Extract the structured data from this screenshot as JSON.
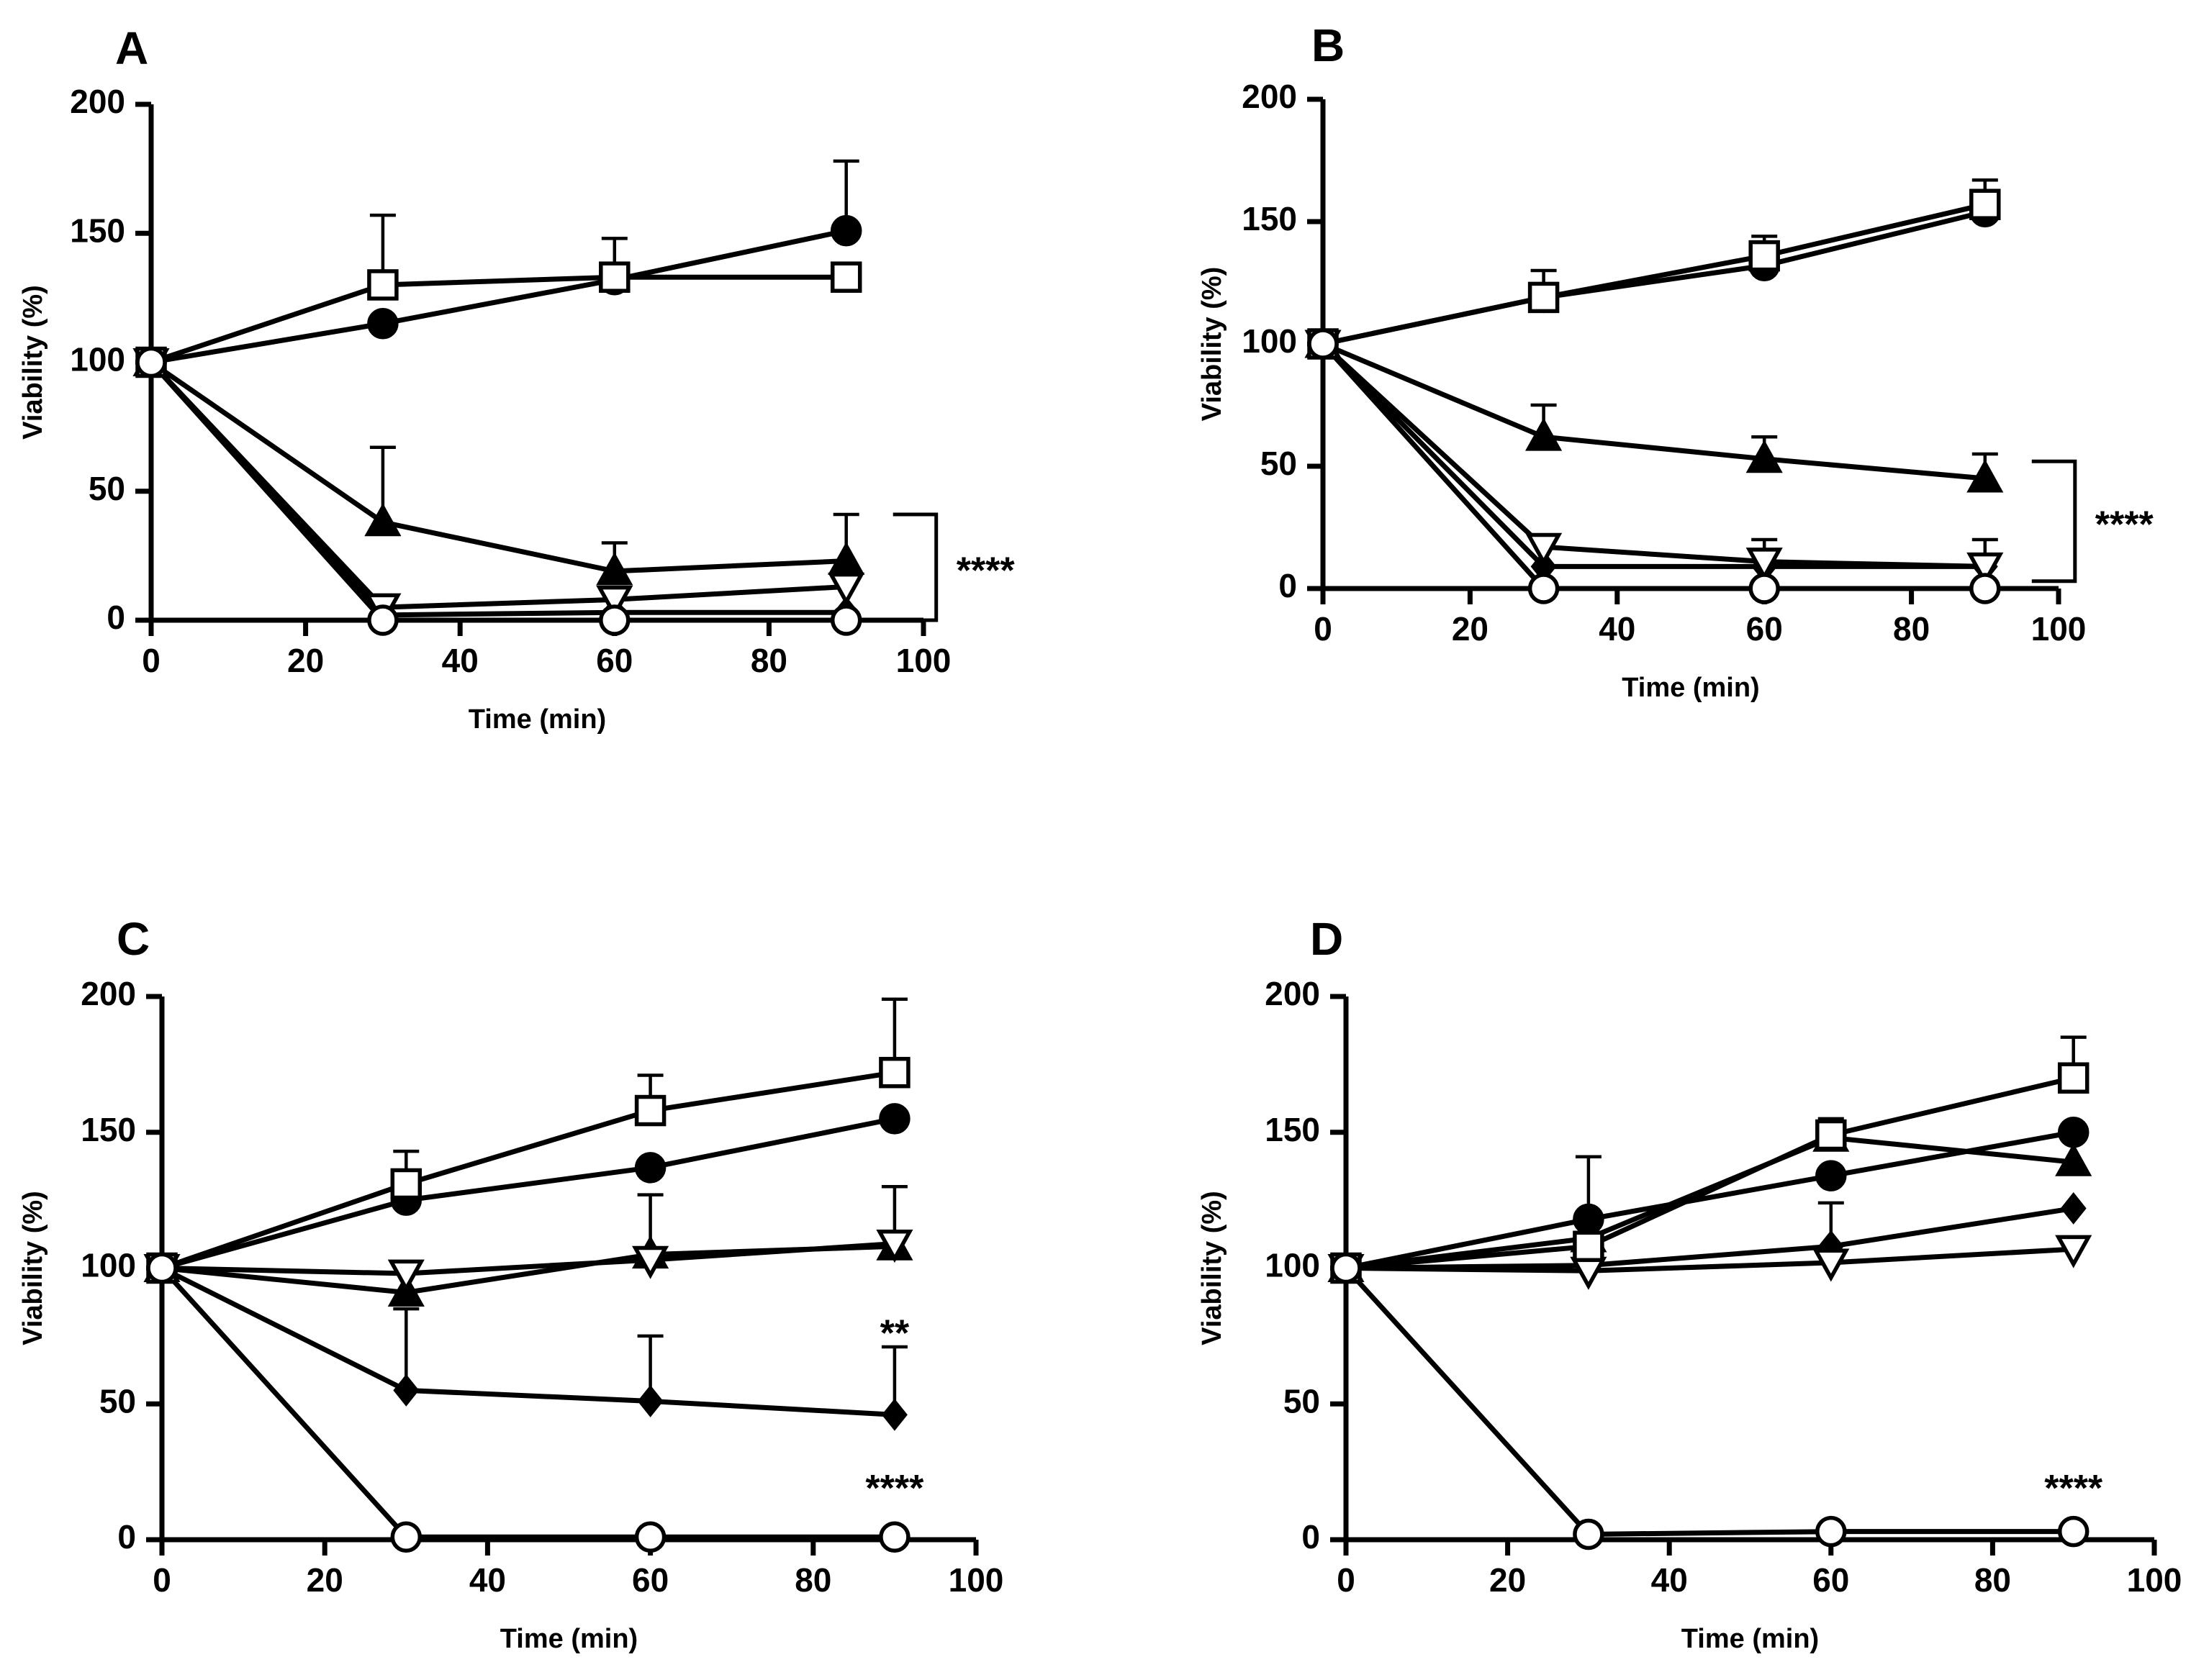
{
  "figure": {
    "description_free": true
  },
  "chart_data": [
    {
      "panel": "A",
      "type": "line",
      "xlabel": "Time (min)",
      "ylabel": "Viability (%)",
      "xlim": [
        0,
        100
      ],
      "ylim": [
        0,
        200
      ],
      "xticks": [
        0,
        20,
        40,
        60,
        80,
        100
      ],
      "yticks": [
        0,
        50,
        100,
        150,
        200
      ],
      "x": [
        0,
        30,
        60,
        90
      ],
      "series": [
        {
          "marker": "filled-circle",
          "values": [
            100,
            115,
            132,
            151
          ],
          "errors": [
            0,
            0,
            0,
            27
          ]
        },
        {
          "marker": "open-square",
          "values": [
            100,
            130,
            133,
            133
          ],
          "errors": [
            0,
            27,
            15,
            0
          ]
        },
        {
          "marker": "filled-triangle",
          "values": [
            100,
            38,
            19,
            23
          ],
          "errors": [
            0,
            29,
            11,
            18
          ]
        },
        {
          "marker": "open-triangle-down",
          "values": [
            100,
            5,
            8,
            13
          ],
          "errors": [
            0,
            0,
            0,
            0
          ]
        },
        {
          "marker": "filled-diamond",
          "values": [
            100,
            2,
            3,
            3
          ],
          "errors": [
            0,
            0,
            0,
            0
          ]
        },
        {
          "marker": "open-circle",
          "values": [
            100,
            0,
            0,
            0
          ],
          "errors": [
            0,
            0,
            0,
            0
          ]
        }
      ],
      "annotations": [
        {
          "text": "****",
          "bracket": true,
          "x": 90,
          "y_range": [
            0,
            41
          ]
        }
      ]
    },
    {
      "panel": "B",
      "type": "line",
      "xlabel": "Time (min)",
      "ylabel": "Viability (%)",
      "xlim": [
        0,
        100
      ],
      "ylim": [
        0,
        200
      ],
      "xticks": [
        0,
        20,
        40,
        60,
        80,
        100
      ],
      "yticks": [
        0,
        50,
        100,
        150,
        200
      ],
      "x": [
        0,
        30,
        60,
        90
      ],
      "series": [
        {
          "marker": "filled-circle",
          "values": [
            100,
            119,
            132,
            154
          ],
          "errors": [
            0,
            0,
            0,
            0
          ]
        },
        {
          "marker": "open-square",
          "values": [
            100,
            119,
            136,
            157
          ],
          "errors": [
            0,
            11,
            8,
            10
          ]
        },
        {
          "marker": "filled-triangle",
          "values": [
            100,
            62,
            53,
            45
          ],
          "errors": [
            0,
            13,
            9,
            10
          ]
        },
        {
          "marker": "open-triangle-down",
          "values": [
            100,
            17,
            11,
            9
          ],
          "errors": [
            0,
            0,
            9,
            11
          ]
        },
        {
          "marker": "filled-diamond",
          "values": [
            100,
            9,
            9,
            9
          ],
          "errors": [
            0,
            0,
            0,
            0
          ]
        },
        {
          "marker": "open-circle",
          "values": [
            100,
            0,
            0,
            0
          ],
          "errors": [
            0,
            0,
            0,
            0
          ]
        }
      ],
      "annotations": [
        {
          "text": "****",
          "bracket": true,
          "x": 90,
          "y_range": [
            3,
            52
          ]
        }
      ]
    },
    {
      "panel": "C",
      "type": "line",
      "xlabel": "Time (min)",
      "ylabel": "Viability (%)",
      "xlim": [
        0,
        100
      ],
      "ylim": [
        0,
        200
      ],
      "xticks": [
        0,
        20,
        40,
        60,
        80,
        100
      ],
      "yticks": [
        0,
        50,
        100,
        150,
        200
      ],
      "x": [
        0,
        30,
        60,
        90
      ],
      "series": [
        {
          "marker": "filled-circle",
          "values": [
            100,
            125,
            137,
            155
          ],
          "errors": [
            0,
            0,
            0,
            0
          ]
        },
        {
          "marker": "open-square",
          "values": [
            100,
            131,
            158,
            172
          ],
          "errors": [
            0,
            12,
            13,
            27
          ]
        },
        {
          "marker": "filled-triangle",
          "values": [
            100,
            91,
            105,
            108
          ],
          "errors": [
            0,
            0,
            22,
            22
          ]
        },
        {
          "marker": "open-triangle-down",
          "values": [
            100,
            98,
            103,
            109
          ],
          "errors": [
            0,
            0,
            0,
            0
          ]
        },
        {
          "marker": "filled-diamond",
          "values": [
            100,
            55,
            51,
            46
          ],
          "errors": [
            0,
            30,
            24,
            25
          ]
        },
        {
          "marker": "open-circle",
          "values": [
            100,
            1,
            1,
            1
          ],
          "errors": [
            0,
            0,
            0,
            0
          ]
        }
      ],
      "annotations": [
        {
          "text": "**",
          "x": 90,
          "y": 75
        },
        {
          "text": "****",
          "x": 90,
          "y": 18
        }
      ]
    },
    {
      "panel": "D",
      "type": "line",
      "xlabel": "Time (min)",
      "ylabel": "Viability (%)",
      "xlim": [
        0,
        100
      ],
      "ylim": [
        0,
        200
      ],
      "xticks": [
        0,
        20,
        40,
        60,
        80,
        100
      ],
      "yticks": [
        0,
        50,
        100,
        150,
        200
      ],
      "x": [
        0,
        30,
        60,
        90
      ],
      "series": [
        {
          "marker": "filled-circle",
          "values": [
            100,
            118,
            134,
            150
          ],
          "errors": [
            0,
            23,
            0,
            0
          ]
        },
        {
          "marker": "open-square",
          "values": [
            100,
            108,
            149,
            170
          ],
          "errors": [
            0,
            0,
            6,
            15
          ]
        },
        {
          "marker": "filled-triangle",
          "values": [
            100,
            111,
            148,
            139
          ],
          "errors": [
            0,
            0,
            0,
            0
          ]
        },
        {
          "marker": "open-triangle-down",
          "values": [
            100,
            99,
            102,
            107
          ],
          "errors": [
            0,
            0,
            0,
            0
          ]
        },
        {
          "marker": "filled-diamond",
          "values": [
            100,
            101,
            108,
            122
          ],
          "errors": [
            0,
            0,
            16,
            0
          ]
        },
        {
          "marker": "open-circle",
          "values": [
            100,
            2,
            3,
            3
          ],
          "errors": [
            0,
            0,
            0,
            0
          ]
        }
      ],
      "annotations": [
        {
          "text": "****",
          "x": 90,
          "y": 18
        }
      ]
    }
  ]
}
